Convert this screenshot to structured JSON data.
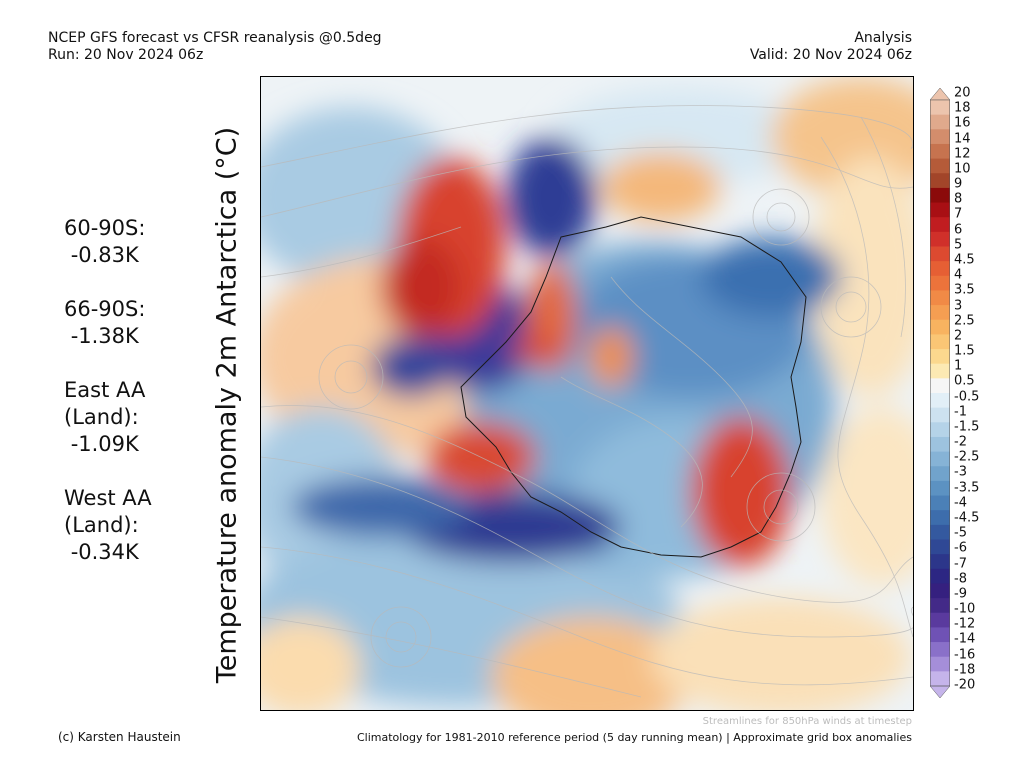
{
  "header": {
    "title": "NCEP GFS forecast vs CFSR reanalysis @0.5deg",
    "run": "Run: 20 Nov 2024 06z",
    "mode": "Analysis",
    "valid": "Valid: 20 Nov 2024 06z"
  },
  "map": {
    "variable_label": "Temperature anomaly 2m Antarctica (°C)",
    "projection": "south polar stereographic",
    "overlay": "streamlines"
  },
  "stats": [
    {
      "region": "60-90S:",
      "value": "-0.83K"
    },
    {
      "region": "66-90S:",
      "value": "-1.38K"
    },
    {
      "region": "East AA\n(Land):",
      "value": "-1.09K"
    },
    {
      "region": "West AA\n(Land):",
      "value": "-0.34K"
    }
  ],
  "colorbar": {
    "labels": [
      "20",
      "18",
      "16",
      "14",
      "12",
      "10",
      "9",
      "8",
      "7",
      "6",
      "5",
      "4.5",
      "4",
      "3.5",
      "3",
      "2.5",
      "2",
      "1.5",
      "1",
      "0.5",
      "-0.5",
      "-1",
      "-1.5",
      "-2",
      "-2.5",
      "-3",
      "-3.5",
      "-4",
      "-4.5",
      "-5",
      "-6",
      "-7",
      "-8",
      "-9",
      "-10",
      "-12",
      "-14",
      "-16",
      "-18",
      "-20"
    ],
    "colors": [
      "#ecc4ad",
      "#e0a98c",
      "#d38d6c",
      "#c6734f",
      "#b55b39",
      "#a24529",
      "#8b0a0a",
      "#a80f14",
      "#c01d20",
      "#d0302a",
      "#dc4a30",
      "#e65f34",
      "#ec733b",
      "#f18a46",
      "#f59e52",
      "#f8b360",
      "#fac675",
      "#fbd88e",
      "#fce9b3",
      "#f6f6f6",
      "#e2eff7",
      "#cde2f0",
      "#b5d3e8",
      "#9dc3df",
      "#86b3d6",
      "#71a3cc",
      "#5c92c2",
      "#4b80b7",
      "#3d6dac",
      "#34599f",
      "#2f4895",
      "#2c368a",
      "#2c2683",
      "#35207f",
      "#432a88",
      "#5a3a9e",
      "#6f52b5",
      "#8a70c9",
      "#a58ed9",
      "#c5b4ea"
    ]
  },
  "footer": {
    "credit": "(c) Karsten Haustein",
    "streamlines_note": "Streamlines for 850hPa winds at timestep",
    "climatology": "Climatology for 1981-2010 reference period (5 day running mean) | Approximate grid box anomalies"
  }
}
